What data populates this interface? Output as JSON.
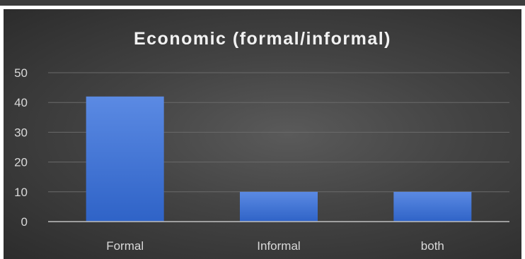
{
  "chart_data": {
    "type": "bar",
    "title": "Economic (formal/informal)",
    "categories": [
      "Formal",
      "Informal",
      "both"
    ],
    "values": [
      42,
      10,
      10
    ],
    "xlabel": "",
    "ylabel": "",
    "ylim": [
      0,
      50
    ],
    "yticks": [
      "0",
      "10",
      "20",
      "30",
      "40",
      "50"
    ],
    "grid": true,
    "legend": "none"
  },
  "colors": {
    "bar_top": "#5b8ae3",
    "bar_bottom": "#2f63c7",
    "axis_text": "#d9d9d9",
    "gridline": "#6a6a6a",
    "axis_line": "#bfbfbf"
  }
}
